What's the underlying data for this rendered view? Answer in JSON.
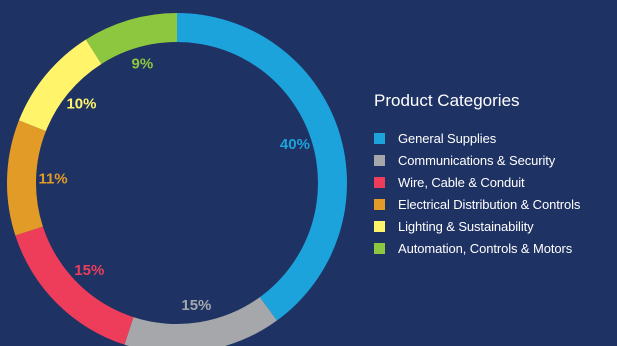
{
  "chart_data": {
    "type": "pie",
    "title": "Product Categories",
    "categories": [
      "General Supplies",
      "Communications & Security",
      "Wire, Cable & Conduit",
      "Electrical Distribution & Controls",
      "Lighting & Sustainability",
      "Automation, Controls & Motors"
    ],
    "values": [
      40,
      15,
      15,
      11,
      10,
      9
    ],
    "labels": [
      "40%",
      "15%",
      "15%",
      "11%",
      "10%",
      "9%"
    ],
    "colors": [
      "#1ca3dc",
      "#a5a7aa",
      "#ee3d5a",
      "#e29b26",
      "#fff46a",
      "#8dc63f"
    ],
    "label_colors": [
      "#1ca3dc",
      "#a5a7aa",
      "#ee3d5a",
      "#e29b26",
      "#fff46a",
      "#8dc63f"
    ],
    "legend_position": "right",
    "donut": true
  },
  "background_color": "#1e3264"
}
